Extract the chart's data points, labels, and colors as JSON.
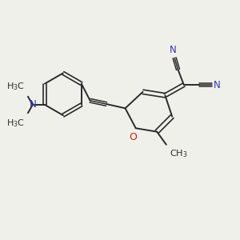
{
  "bg_color": "#f0f0eb",
  "bond_color": "#2a2a2a",
  "oxygen_color": "#cc2200",
  "nitrogen_color": "#3333bb",
  "text_color": "#2a2a2a",
  "figsize": [
    3.0,
    3.0
  ],
  "dpi": 100,
  "xlim": [
    0,
    10
  ],
  "ylim": [
    0,
    10
  ]
}
